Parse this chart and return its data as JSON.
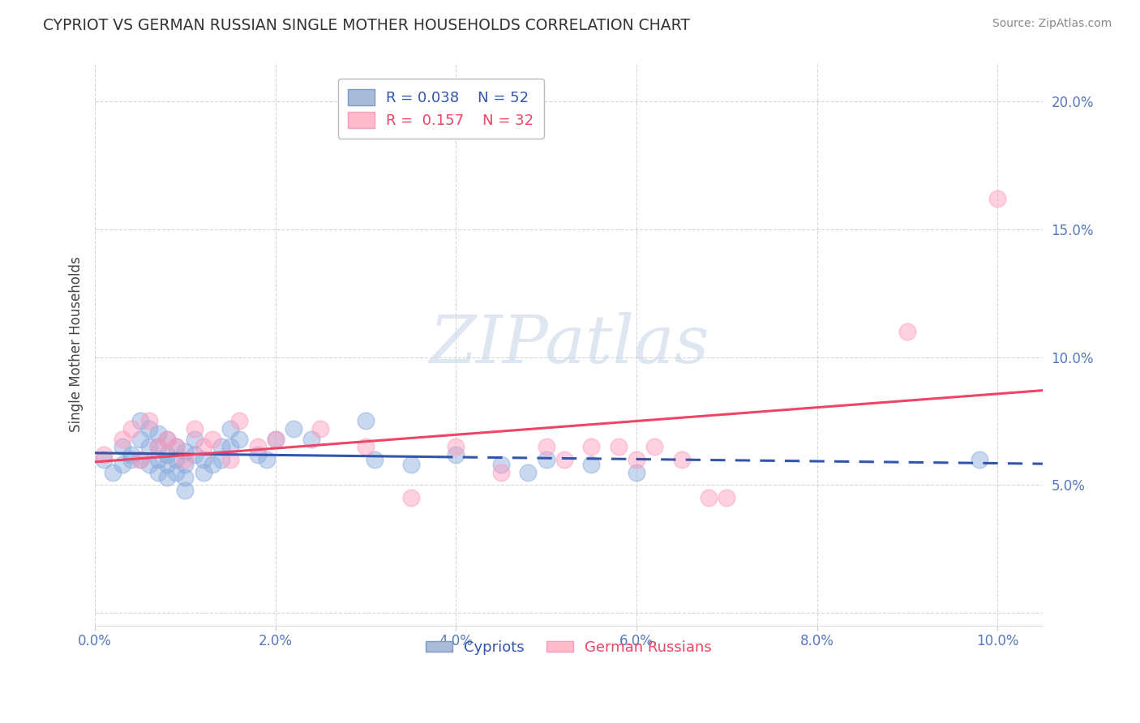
{
  "title": "CYPRIOT VS GERMAN RUSSIAN SINGLE MOTHER HOUSEHOLDS CORRELATION CHART",
  "source": "Source: ZipAtlas.com",
  "ylabel": "Single Mother Households",
  "xlim": [
    0.0,
    0.105
  ],
  "ylim": [
    -0.005,
    0.215
  ],
  "xticks": [
    0.0,
    0.02,
    0.04,
    0.06,
    0.08,
    0.1
  ],
  "yticks": [
    0.0,
    0.05,
    0.1,
    0.15,
    0.2
  ],
  "xtick_labels": [
    "0.0%",
    "2.0%",
    "4.0%",
    "6.0%",
    "8.0%",
    "10.0%"
  ],
  "ytick_labels": [
    "",
    "5.0%",
    "10.0%",
    "15.0%",
    "20.0%"
  ],
  "cypriot_color": "#88AADD",
  "german_russian_color": "#FF99BB",
  "cypriot_line_color": "#3355AA",
  "german_russian_line_color": "#EE4466",
  "cypriot_R": 0.038,
  "cypriot_N": 52,
  "german_russian_R": 0.157,
  "german_russian_N": 32,
  "title_color": "#333333",
  "watermark_text": "ZIPatlas",
  "watermark_color": "#C8D8E8",
  "legend_cypriot_label": "Cypriots",
  "legend_german_russian_label": "German Russians",
  "cypriot_x": [
    0.001,
    0.002,
    0.003,
    0.003,
    0.004,
    0.004,
    0.005,
    0.005,
    0.005,
    0.006,
    0.006,
    0.006,
    0.007,
    0.007,
    0.007,
    0.007,
    0.008,
    0.008,
    0.008,
    0.008,
    0.009,
    0.009,
    0.009,
    0.01,
    0.01,
    0.01,
    0.01,
    0.011,
    0.011,
    0.012,
    0.012,
    0.013,
    0.014,
    0.014,
    0.015,
    0.015,
    0.016,
    0.018,
    0.019,
    0.02,
    0.022,
    0.024,
    0.03,
    0.031,
    0.035,
    0.04,
    0.045,
    0.048,
    0.05,
    0.055,
    0.06,
    0.098
  ],
  "cypriot_y": [
    0.06,
    0.055,
    0.065,
    0.058,
    0.062,
    0.06,
    0.075,
    0.068,
    0.06,
    0.072,
    0.065,
    0.058,
    0.07,
    0.065,
    0.06,
    0.055,
    0.068,
    0.062,
    0.058,
    0.053,
    0.065,
    0.06,
    0.055,
    0.063,
    0.058,
    0.053,
    0.048,
    0.068,
    0.062,
    0.06,
    0.055,
    0.058,
    0.065,
    0.06,
    0.065,
    0.072,
    0.068,
    0.062,
    0.06,
    0.068,
    0.072,
    0.068,
    0.075,
    0.06,
    0.058,
    0.062,
    0.058,
    0.055,
    0.06,
    0.058,
    0.055,
    0.06
  ],
  "german_russian_x": [
    0.001,
    0.003,
    0.004,
    0.005,
    0.006,
    0.007,
    0.008,
    0.009,
    0.01,
    0.011,
    0.012,
    0.013,
    0.015,
    0.016,
    0.018,
    0.02,
    0.025,
    0.03,
    0.035,
    0.04,
    0.045,
    0.05,
    0.052,
    0.055,
    0.058,
    0.06,
    0.062,
    0.065,
    0.068,
    0.07,
    0.09,
    0.1
  ],
  "german_russian_y": [
    0.062,
    0.068,
    0.072,
    0.06,
    0.075,
    0.065,
    0.068,
    0.065,
    0.06,
    0.072,
    0.065,
    0.068,
    0.06,
    0.075,
    0.065,
    0.068,
    0.072,
    0.065,
    0.045,
    0.065,
    0.055,
    0.065,
    0.06,
    0.065,
    0.065,
    0.06,
    0.065,
    0.06,
    0.045,
    0.045,
    0.11,
    0.162
  ]
}
